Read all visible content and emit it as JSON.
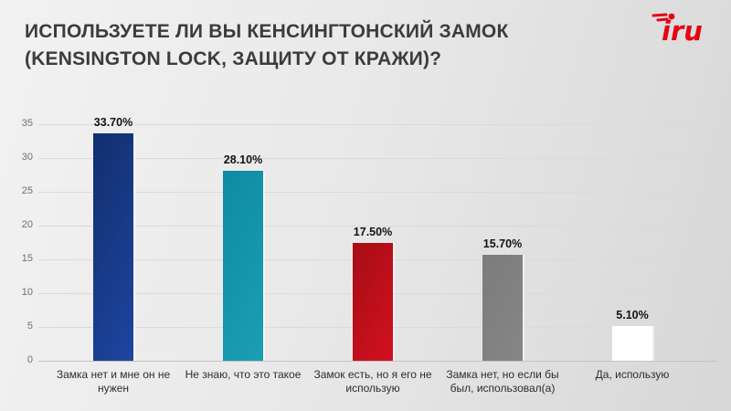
{
  "slide": {
    "title_line1": "ИСПОЛЬЗУЕТЕ ЛИ ВЫ КЕНСИНГТОНСКИЙ ЗАМОК",
    "title_line2": "(KENSINGTON LOCK, ЗАЩИТУ ОТ КРАЖИ)?",
    "logo": {
      "text": "iru",
      "color": "#e30613"
    }
  },
  "chart_data": {
    "type": "bar",
    "title": "ИСПОЛЬЗУЕТЕ ЛИ ВЫ КЕНСИНГТОНСКИЙ ЗАМОК (KENSINGTON LOCK, ЗАЩИТУ ОТ КРАЖИ)?",
    "categories": [
      "Замка нет и мне он не нужен",
      "Не знаю, что это такое",
      "Замок есть, но я его не использую",
      "Замка нет, но если бы был, использовал(а)",
      "Да, использую"
    ],
    "values": [
      33.7,
      28.1,
      17.5,
      15.7,
      5.1
    ],
    "value_labels": [
      "33.70%",
      "28.10%",
      "17.50%",
      "15.70%",
      "5.10%"
    ],
    "bar_colors": [
      {
        "from": "#122e6e",
        "to": "#1d46a0"
      },
      {
        "from": "#0e8ba2",
        "to": "#1b9fb4"
      },
      {
        "from": "#a50d15",
        "to": "#d31120"
      },
      {
        "from": "#7c7c7c",
        "to": "#868686"
      },
      {
        "from": "#ffffff",
        "to": "#ffffff"
      }
    ],
    "xlabel": "",
    "ylabel": "",
    "ylim": [
      0,
      35
    ],
    "y_ticks": [
      0,
      5,
      10,
      15,
      20,
      25,
      30,
      35
    ],
    "grid": true,
    "legend": "none"
  }
}
